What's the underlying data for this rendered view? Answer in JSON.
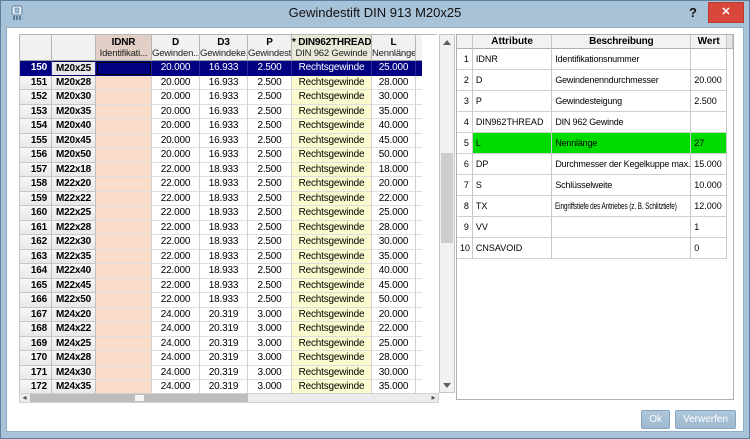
{
  "window": {
    "title": "Gewindestift DIN 913 M20x25",
    "help_label": "?",
    "close_label": "x"
  },
  "left_table": {
    "column_headers": [
      {
        "code": "",
        "desc": ""
      },
      {
        "code": "",
        "desc": ""
      },
      {
        "code": "IDNR",
        "desc": "Identifikati..."
      },
      {
        "code": "D",
        "desc": "Gewinden..."
      },
      {
        "code": "D3",
        "desc": "Gewindeke..."
      },
      {
        "code": "P",
        "desc": "Gewindest..."
      },
      {
        "code": "* DIN962THREAD",
        "desc": "DIN 962 Gewinde"
      },
      {
        "code": "L",
        "desc": "Nennlänge..."
      }
    ],
    "selected_row_num": 150,
    "rows": [
      [
        150,
        "M20x25",
        "",
        "20.000",
        "16.933",
        "2.500",
        "Rechtsgewinde",
        "25.000"
      ],
      [
        151,
        "M20x28",
        "",
        "20.000",
        "16.933",
        "2.500",
        "Rechtsgewinde",
        "28.000"
      ],
      [
        152,
        "M20x30",
        "",
        "20.000",
        "16.933",
        "2.500",
        "Rechtsgewinde",
        "30.000"
      ],
      [
        153,
        "M20x35",
        "",
        "20.000",
        "16.933",
        "2.500",
        "Rechtsgewinde",
        "35.000"
      ],
      [
        154,
        "M20x40",
        "",
        "20.000",
        "16.933",
        "2.500",
        "Rechtsgewinde",
        "40.000"
      ],
      [
        155,
        "M20x45",
        "",
        "20.000",
        "16.933",
        "2.500",
        "Rechtsgewinde",
        "45.000"
      ],
      [
        156,
        "M20x50",
        "",
        "20.000",
        "16.933",
        "2.500",
        "Rechtsgewinde",
        "50.000"
      ],
      [
        157,
        "M22x18",
        "",
        "22.000",
        "18.933",
        "2.500",
        "Rechtsgewinde",
        "18.000"
      ],
      [
        158,
        "M22x20",
        "",
        "22.000",
        "18.933",
        "2.500",
        "Rechtsgewinde",
        "20.000"
      ],
      [
        159,
        "M22x22",
        "",
        "22.000",
        "18.933",
        "2.500",
        "Rechtsgewinde",
        "22.000"
      ],
      [
        160,
        "M22x25",
        "",
        "22.000",
        "18.933",
        "2.500",
        "Rechtsgewinde",
        "25.000"
      ],
      [
        161,
        "M22x28",
        "",
        "22.000",
        "18.933",
        "2.500",
        "Rechtsgewinde",
        "28.000"
      ],
      [
        162,
        "M22x30",
        "",
        "22.000",
        "18.933",
        "2.500",
        "Rechtsgewinde",
        "30.000"
      ],
      [
        163,
        "M22x35",
        "",
        "22.000",
        "18.933",
        "2.500",
        "Rechtsgewinde",
        "35.000"
      ],
      [
        164,
        "M22x40",
        "",
        "22.000",
        "18.933",
        "2.500",
        "Rechtsgewinde",
        "40.000"
      ],
      [
        165,
        "M22x45",
        "",
        "22.000",
        "18.933",
        "2.500",
        "Rechtsgewinde",
        "45.000"
      ],
      [
        166,
        "M22x50",
        "",
        "22.000",
        "18.933",
        "2.500",
        "Rechtsgewinde",
        "50.000"
      ],
      [
        167,
        "M24x20",
        "",
        "24.000",
        "20.319",
        "3.000",
        "Rechtsgewinde",
        "20.000"
      ],
      [
        168,
        "M24x22",
        "",
        "24.000",
        "20.319",
        "3.000",
        "Rechtsgewinde",
        "22.000"
      ],
      [
        169,
        "M24x25",
        "",
        "24.000",
        "20.319",
        "3.000",
        "Rechtsgewinde",
        "25.000"
      ],
      [
        170,
        "M24x28",
        "",
        "24.000",
        "20.319",
        "3.000",
        "Rechtsgewinde",
        "28.000"
      ],
      [
        171,
        "M24x30",
        "",
        "24.000",
        "20.319",
        "3.000",
        "Rechtsgewinde",
        "30.000"
      ],
      [
        172,
        "M24x35",
        "",
        "24.000",
        "20.319",
        "3.000",
        "Rechtsgewinde",
        "35.000"
      ]
    ]
  },
  "right_table": {
    "column_headers": [
      "Attribute",
      "Beschreibung",
      "Wert"
    ],
    "highlighted_attribute": "L",
    "rows": [
      {
        "n": 1,
        "attr": "IDNR",
        "desc": "Identifikationsnummer",
        "wert": ""
      },
      {
        "n": 2,
        "attr": "D",
        "desc": "Gewindenenndurchmesser",
        "wert": "20.000"
      },
      {
        "n": 3,
        "attr": "P",
        "desc": "Gewindesteigung",
        "wert": "2.500"
      },
      {
        "n": 4,
        "attr": "DIN962THREAD",
        "desc": "DIN 962 Gewinde",
        "wert": ""
      },
      {
        "n": 5,
        "attr": "L",
        "desc": "Nennlänge",
        "wert": "27"
      },
      {
        "n": 6,
        "attr": "DP",
        "desc": "Durchmesser der Kegelkuppe max.",
        "wert": "15.000"
      },
      {
        "n": 7,
        "attr": "S",
        "desc": "Schlüsselweite",
        "wert": "10.000"
      },
      {
        "n": 8,
        "attr": "TX",
        "desc": "Eingriffstiefe des Antriebes (z. B. Schlitztiefe)",
        "wert": "12.000"
      },
      {
        "n": 9,
        "attr": "VV",
        "desc": "",
        "wert": "1"
      },
      {
        "n": 10,
        "attr": "CNSAVOID",
        "desc": "",
        "wert": "0"
      }
    ]
  },
  "buttons": {
    "ok": "Ok",
    "discard": "Verwerfen"
  },
  "colors": {
    "titlebar": "#a8c2d8",
    "selection": "#000080",
    "idnr_cell": "#f9dcca",
    "thread_cell": "#fbfbcf",
    "highlight_green": "#00dc00",
    "close_red": "#d9463a"
  }
}
